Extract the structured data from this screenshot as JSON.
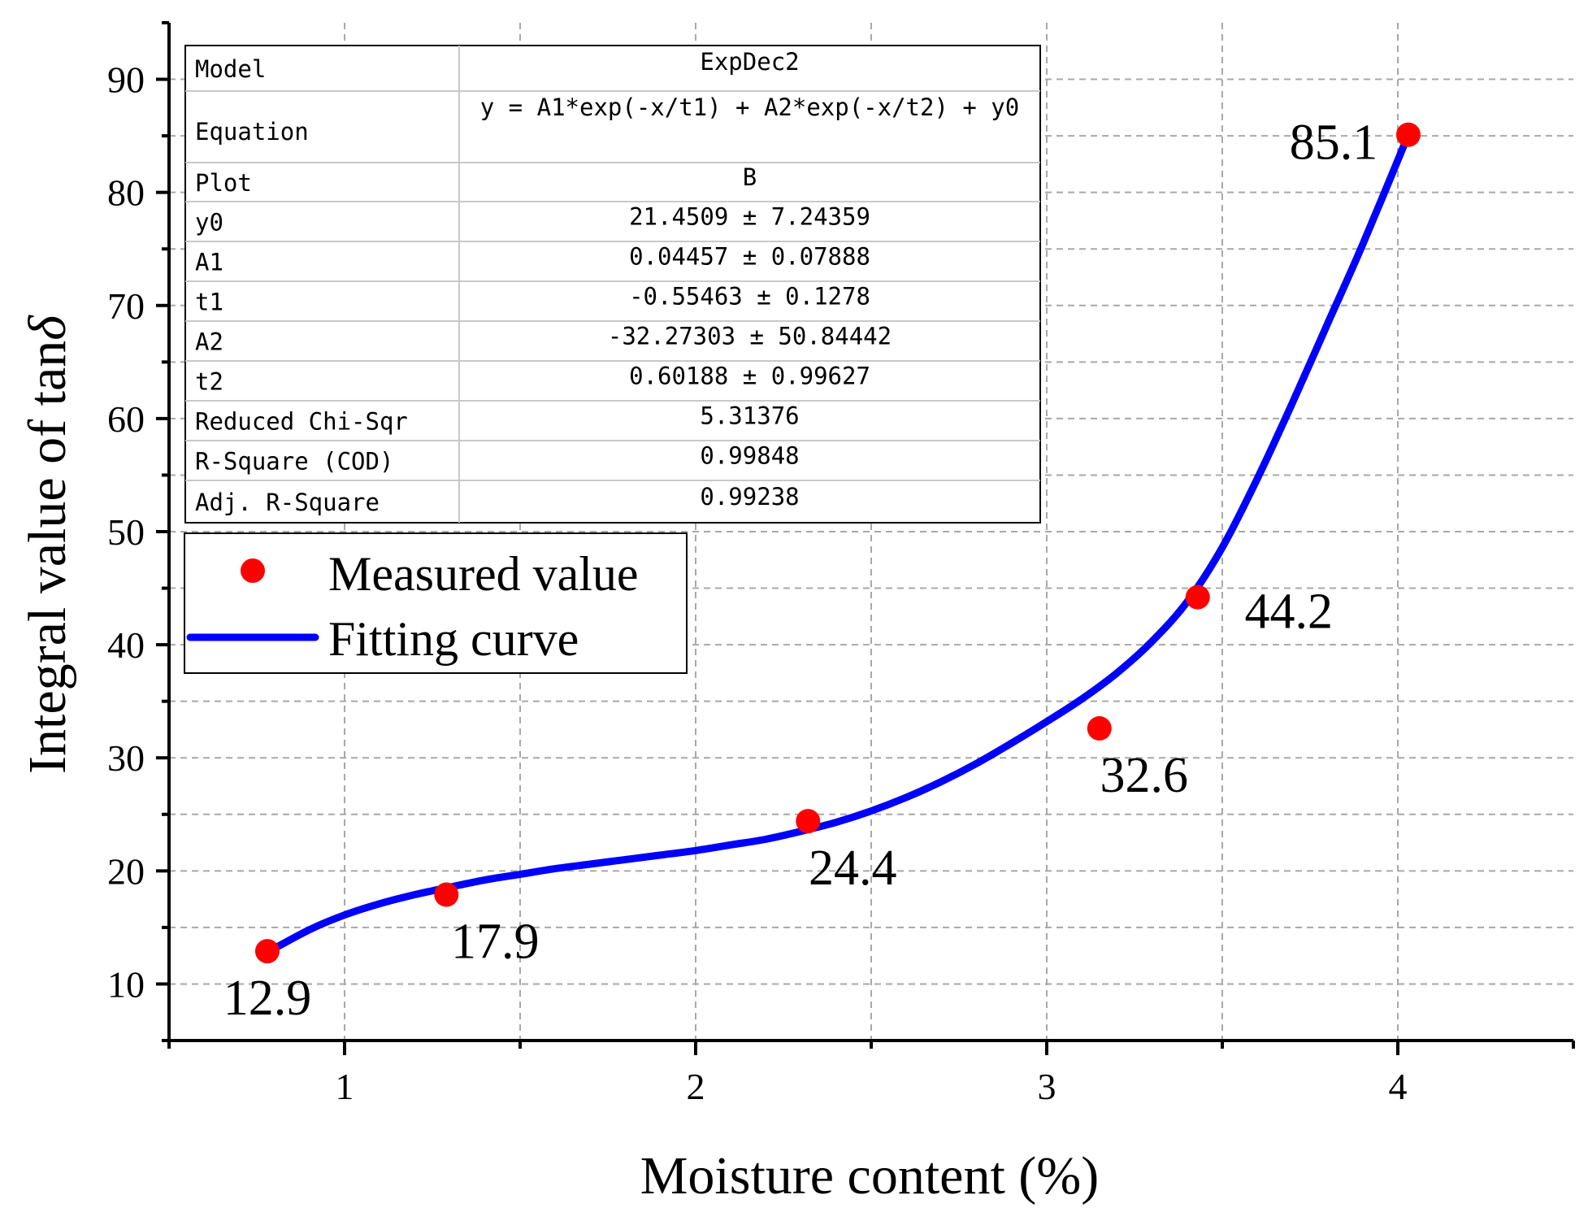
{
  "chart_data": {
    "type": "scatter",
    "title": "",
    "xlabel": "Moisture content (%)",
    "ylabel": "Integral value of tan",
    "ylabel_symbol": "δ",
    "xlim": [
      0.5,
      4.5
    ],
    "ylim": [
      5,
      95
    ],
    "x_ticks": [
      1,
      2,
      3,
      4
    ],
    "y_ticks": [
      10,
      20,
      30,
      40,
      50,
      60,
      70,
      80,
      90
    ],
    "x_tick_labels": [
      "1",
      "2",
      "3",
      "4"
    ],
    "y_tick_labels": [
      "10",
      "20",
      "30",
      "40",
      "50",
      "60",
      "70",
      "80",
      "90"
    ],
    "grid": true,
    "series": [
      {
        "name": "Measured value",
        "kind": "scatter",
        "color": "#ff0000",
        "x": [
          0.78,
          1.29,
          2.32,
          3.15,
          3.43,
          4.03
        ],
        "y": [
          12.9,
          17.9,
          24.4,
          32.6,
          44.2,
          85.1
        ],
        "labels": [
          "12.9",
          "17.9",
          "24.4",
          "32.6",
          "44.2",
          "85.1"
        ]
      },
      {
        "name": "Fitting curve",
        "kind": "line",
        "color": "#0000ff",
        "x": [
          0.78,
          0.9,
          1.0,
          1.1,
          1.2,
          1.29,
          1.4,
          1.5,
          1.6,
          1.7,
          1.8,
          1.9,
          2.0,
          2.1,
          2.2,
          2.3,
          2.4,
          2.5,
          2.6,
          2.7,
          2.8,
          2.9,
          3.0,
          3.1,
          3.2,
          3.3,
          3.4,
          3.5,
          3.6,
          3.7,
          3.8,
          3.9,
          4.03
        ],
        "y": [
          12.8,
          14.8,
          16.1,
          17.1,
          17.9,
          18.5,
          19.2,
          19.7,
          20.2,
          20.6,
          21.0,
          21.4,
          21.8,
          22.3,
          22.8,
          23.5,
          24.3,
          25.3,
          26.5,
          27.9,
          29.5,
          31.3,
          33.2,
          35.2,
          37.5,
          40.3,
          43.8,
          48.6,
          54.7,
          61.4,
          68.4,
          75.4,
          85.1
        ]
      }
    ],
    "annotations": [
      "12.9",
      "17.9",
      "24.4",
      "32.6",
      "44.2",
      "85.1"
    ],
    "legend": {
      "placement": "upper-left",
      "entries": [
        "Measured value",
        "Fitting curve"
      ]
    },
    "fit_table": {
      "rows": [
        {
          "label": "Model",
          "value": "ExpDec2"
        },
        {
          "label": "Equation",
          "value": "y = A1*exp(-x/t1) + A2*exp(-x/t2) + y0"
        },
        {
          "label": "Plot",
          "value": "B"
        },
        {
          "label": "y0",
          "value": "21.4509 ± 7.24359"
        },
        {
          "label": "A1",
          "value": "0.04457 ± 0.07888"
        },
        {
          "label": "t1",
          "value": "-0.55463 ± 0.1278"
        },
        {
          "label": "A2",
          "value": "-32.27303 ± 50.84442"
        },
        {
          "label": "t2",
          "value": "0.60188 ± 0.99627"
        },
        {
          "label": "Reduced Chi-Sqr",
          "value": "5.31376"
        },
        {
          "label": "R-Square (COD)",
          "value": "0.99848"
        },
        {
          "label": "Adj. R-Square",
          "value": "0.99238"
        }
      ]
    }
  }
}
